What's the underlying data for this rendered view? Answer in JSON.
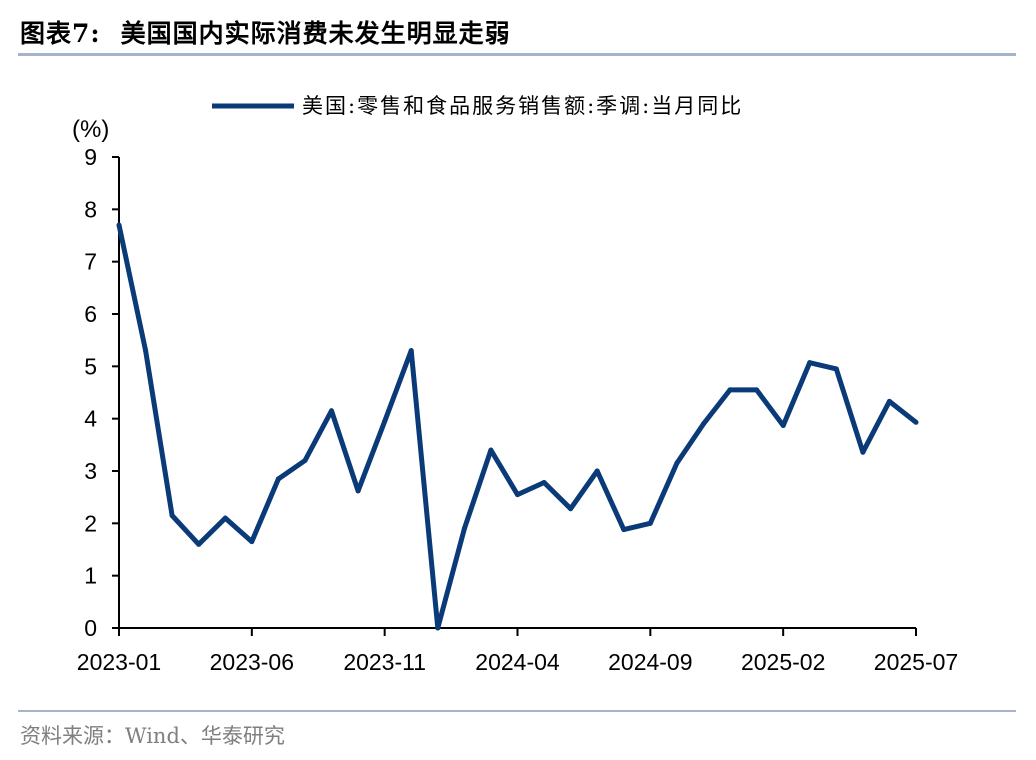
{
  "header": {
    "figure_label": "图表7:",
    "title": "美国国内实际消费未发生明显走弱"
  },
  "footer": {
    "source": "资料来源：Wind、华泰研究"
  },
  "chart_data": {
    "type": "line",
    "unit_label": "(%)",
    "ylim": [
      0,
      9
    ],
    "yticks": [
      0,
      1,
      2,
      3,
      4,
      5,
      6,
      7,
      8,
      9
    ],
    "x_tick_labels": [
      "2023-01",
      "2023-06",
      "2023-11",
      "2024-04",
      "2024-09",
      "2025-02",
      "2025-07"
    ],
    "legend_position": "top",
    "grid": false,
    "colors": {
      "series": "#0a3a78",
      "axis": "#000000"
    },
    "x": [
      "2023-01",
      "2023-02",
      "2023-03",
      "2023-04",
      "2023-05",
      "2023-06",
      "2023-07",
      "2023-08",
      "2023-09",
      "2023-10",
      "2023-11",
      "2023-12",
      "2024-01",
      "2024-02",
      "2024-03",
      "2024-04",
      "2024-05",
      "2024-06",
      "2024-07",
      "2024-08",
      "2024-09",
      "2024-10",
      "2024-11",
      "2024-12",
      "2025-01",
      "2025-02",
      "2025-03",
      "2025-04",
      "2025-05",
      "2025-06",
      "2025-07"
    ],
    "series": [
      {
        "name": "美国:零售和食品服务销售额:季调:当月同比",
        "values": [
          7.7,
          5.3,
          2.15,
          1.6,
          2.1,
          1.65,
          2.85,
          3.2,
          4.15,
          2.62,
          3.95,
          5.3,
          0.0,
          1.9,
          3.4,
          2.55,
          2.78,
          2.28,
          3.0,
          1.88,
          2.0,
          3.15,
          3.9,
          4.55,
          4.55,
          3.87,
          5.07,
          4.95,
          3.36,
          4.33,
          3.93
        ]
      }
    ]
  }
}
